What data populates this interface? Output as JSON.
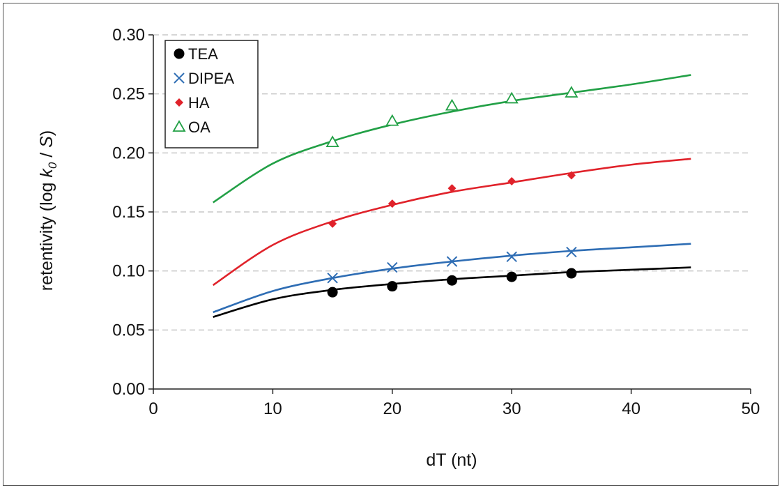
{
  "chart_data": {
    "type": "scatter",
    "xlabel": "dT (nt)",
    "ylabel_parts": [
      "retentivity (log ",
      "k",
      "0",
      " / ",
      "S",
      ")"
    ],
    "xlim": [
      0,
      50
    ],
    "ylim": [
      0,
      0.3
    ],
    "x_ticks": [
      "0",
      "10",
      "20",
      "30",
      "40",
      "50"
    ],
    "y_ticks": [
      "0.00",
      "0.05",
      "0.10",
      "0.15",
      "0.20",
      "0.25",
      "0.30"
    ],
    "grid": "horizontal dashed",
    "legend_position": "top-left",
    "series": [
      {
        "name": "TEA",
        "marker": "circle",
        "color": "#000000",
        "points": [
          [
            15,
            0.082
          ],
          [
            20,
            0.087
          ],
          [
            25,
            0.092
          ],
          [
            30,
            0.095
          ],
          [
            35,
            0.098
          ]
        ],
        "fit_curve": [
          [
            5,
            0.061
          ],
          [
            10,
            0.076
          ],
          [
            15,
            0.084
          ],
          [
            20,
            0.089
          ],
          [
            25,
            0.093
          ],
          [
            30,
            0.096
          ],
          [
            35,
            0.099
          ],
          [
            40,
            0.101
          ],
          [
            45,
            0.103
          ]
        ]
      },
      {
        "name": "DIPEA",
        "marker": "x",
        "color": "#2e6db4",
        "points": [
          [
            15,
            0.094
          ],
          [
            20,
            0.103
          ],
          [
            25,
            0.108
          ],
          [
            30,
            0.112
          ],
          [
            35,
            0.116
          ]
        ],
        "fit_curve": [
          [
            5,
            0.065
          ],
          [
            10,
            0.083
          ],
          [
            15,
            0.094
          ],
          [
            20,
            0.102
          ],
          [
            25,
            0.108
          ],
          [
            30,
            0.113
          ],
          [
            35,
            0.117
          ],
          [
            40,
            0.12
          ],
          [
            45,
            0.123
          ]
        ]
      },
      {
        "name": "HA",
        "marker": "diamond",
        "color": "#e0222a",
        "points": [
          [
            15,
            0.14
          ],
          [
            20,
            0.157
          ],
          [
            25,
            0.17
          ],
          [
            30,
            0.176
          ],
          [
            35,
            0.181
          ]
        ],
        "fit_curve": [
          [
            5,
            0.088
          ],
          [
            10,
            0.122
          ],
          [
            15,
            0.142
          ],
          [
            20,
            0.156
          ],
          [
            25,
            0.167
          ],
          [
            30,
            0.175
          ],
          [
            35,
            0.183
          ],
          [
            40,
            0.19
          ],
          [
            45,
            0.195
          ]
        ]
      },
      {
        "name": "OA",
        "marker": "triangle-open",
        "color": "#22a046",
        "points": [
          [
            15,
            0.209
          ],
          [
            20,
            0.227
          ],
          [
            25,
            0.24
          ],
          [
            30,
            0.246
          ],
          [
            35,
            0.251
          ]
        ],
        "fit_curve": [
          [
            5,
            0.158
          ],
          [
            10,
            0.191
          ],
          [
            15,
            0.21
          ],
          [
            20,
            0.224
          ],
          [
            25,
            0.235
          ],
          [
            30,
            0.244
          ],
          [
            35,
            0.251
          ],
          [
            40,
            0.258
          ],
          [
            45,
            0.266
          ]
        ]
      }
    ]
  }
}
